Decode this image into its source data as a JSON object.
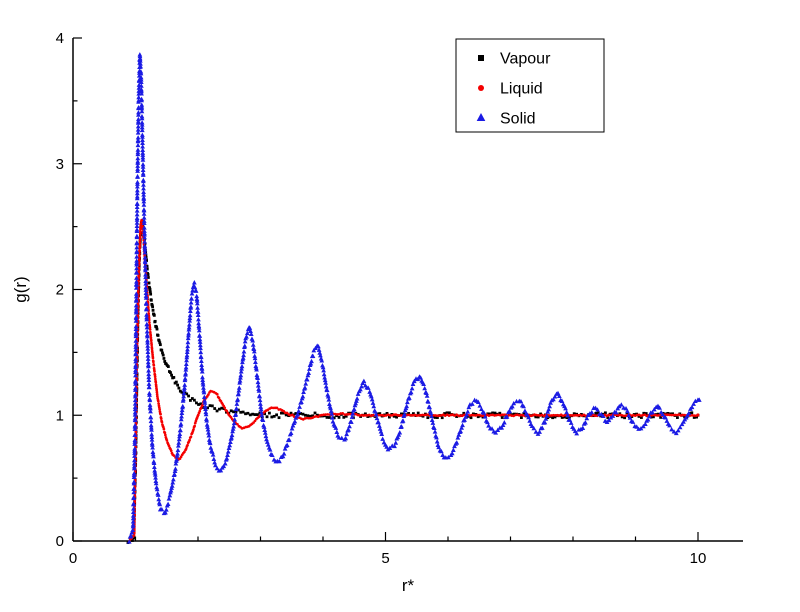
{
  "chart_data": {
    "type": "scatter",
    "title": "",
    "xlabel": "r*",
    "ylabel": "g(r)",
    "xlim": [
      0,
      10.72
    ],
    "ylim": [
      0,
      4
    ],
    "x_major_ticks": [
      0,
      5,
      10
    ],
    "x_minor_step": 1,
    "y_major_ticks": [
      0,
      1,
      2,
      3,
      4
    ],
    "y_minor_step": 0.5,
    "grid": false,
    "legend": {
      "position": "top-center-right",
      "border": true,
      "entries": [
        "Vapour",
        "Liquid",
        "Solid"
      ]
    },
    "series": [
      {
        "name": "Vapour",
        "color": "#000000",
        "marker": "square",
        "jitter": 0.02,
        "points": [
          [
            0.88,
            0
          ],
          [
            0.97,
            0.02
          ],
          [
            1.0,
            0.55
          ],
          [
            1.02,
            1.2
          ],
          [
            1.04,
            1.8
          ],
          [
            1.06,
            2.2
          ],
          [
            1.08,
            2.45
          ],
          [
            1.1,
            2.55
          ],
          [
            1.13,
            2.45
          ],
          [
            1.16,
            2.3
          ],
          [
            1.2,
            2.1
          ],
          [
            1.25,
            1.92
          ],
          [
            1.3,
            1.78
          ],
          [
            1.35,
            1.65
          ],
          [
            1.4,
            1.55
          ],
          [
            1.45,
            1.47
          ],
          [
            1.5,
            1.4
          ],
          [
            1.6,
            1.3
          ],
          [
            1.7,
            1.22
          ],
          [
            1.8,
            1.16
          ],
          [
            1.9,
            1.12
          ],
          [
            2.0,
            1.09
          ],
          [
            2.1,
            1.07
          ],
          [
            2.2,
            1.06
          ],
          [
            2.3,
            1.05
          ],
          [
            2.4,
            1.04
          ],
          [
            2.5,
            1.03
          ],
          [
            2.7,
            1.02
          ],
          [
            2.9,
            1.01
          ],
          [
            3.1,
            1.0
          ],
          [
            3.5,
            1.0
          ],
          [
            4.0,
            1.0
          ],
          [
            4.5,
            1.0
          ],
          [
            5.0,
            1.0
          ],
          [
            5.5,
            1.0
          ],
          [
            6.0,
            1.0
          ],
          [
            6.5,
            1.0
          ],
          [
            7.0,
            1.0
          ],
          [
            7.5,
            1.0
          ],
          [
            8.0,
            1.0
          ],
          [
            8.5,
            1.0
          ],
          [
            9.0,
            1.0
          ],
          [
            9.5,
            1.0
          ],
          [
            10.0,
            1.0
          ]
        ]
      },
      {
        "name": "Liquid",
        "color": "#f40000",
        "marker": "circle",
        "jitter": 0.005,
        "points": [
          [
            0.9,
            0
          ],
          [
            0.98,
            0.05
          ],
          [
            1.0,
            0.7
          ],
          [
            1.02,
            1.4
          ],
          [
            1.05,
            2.1
          ],
          [
            1.08,
            2.5
          ],
          [
            1.1,
            2.56
          ],
          [
            1.13,
            2.4
          ],
          [
            1.17,
            2.1
          ],
          [
            1.22,
            1.75
          ],
          [
            1.28,
            1.45
          ],
          [
            1.35,
            1.15
          ],
          [
            1.42,
            0.95
          ],
          [
            1.5,
            0.8
          ],
          [
            1.6,
            0.68
          ],
          [
            1.7,
            0.65
          ],
          [
            1.8,
            0.72
          ],
          [
            1.9,
            0.85
          ],
          [
            2.0,
            1.0
          ],
          [
            2.1,
            1.12
          ],
          [
            2.2,
            1.19
          ],
          [
            2.3,
            1.17
          ],
          [
            2.4,
            1.08
          ],
          [
            2.5,
            1.0
          ],
          [
            2.6,
            0.94
          ],
          [
            2.7,
            0.9
          ],
          [
            2.8,
            0.91
          ],
          [
            2.9,
            0.95
          ],
          [
            3.0,
            1.0
          ],
          [
            3.1,
            1.04
          ],
          [
            3.2,
            1.06
          ],
          [
            3.3,
            1.05
          ],
          [
            3.4,
            1.02
          ],
          [
            3.5,
            1.0
          ],
          [
            3.6,
            0.98
          ],
          [
            3.7,
            0.97
          ],
          [
            3.8,
            0.98
          ],
          [
            3.9,
            0.99
          ],
          [
            4.0,
            1.0
          ],
          [
            4.2,
            1.01
          ],
          [
            4.4,
            1.01
          ],
          [
            4.6,
            1.0
          ],
          [
            5.0,
            1.0
          ],
          [
            5.5,
            1.0
          ],
          [
            6.0,
            1.0
          ],
          [
            6.5,
            1.0
          ],
          [
            7.0,
            1.0
          ],
          [
            7.5,
            1.0
          ],
          [
            8.0,
            1.0
          ],
          [
            8.5,
            1.0
          ],
          [
            9.0,
            1.0
          ],
          [
            9.5,
            1.0
          ],
          [
            10.0,
            1.0
          ]
        ]
      },
      {
        "name": "Solid",
        "color": "#1b1be4",
        "marker": "triangle",
        "jitter": 0.012,
        "points": [
          [
            0.9,
            0
          ],
          [
            0.96,
            0.1
          ],
          [
            0.99,
            0.8
          ],
          [
            1.01,
            1.8
          ],
          [
            1.03,
            2.8
          ],
          [
            1.05,
            3.5
          ],
          [
            1.07,
            3.87
          ],
          [
            1.09,
            3.7
          ],
          [
            1.12,
            3.0
          ],
          [
            1.15,
            2.3
          ],
          [
            1.18,
            1.75
          ],
          [
            1.22,
            1.2
          ],
          [
            1.27,
            0.75
          ],
          [
            1.33,
            0.45
          ],
          [
            1.4,
            0.25
          ],
          [
            1.47,
            0.22
          ],
          [
            1.55,
            0.35
          ],
          [
            1.63,
            0.55
          ],
          [
            1.7,
            0.8
          ],
          [
            1.78,
            1.2
          ],
          [
            1.85,
            1.65
          ],
          [
            1.9,
            1.95
          ],
          [
            1.94,
            2.05
          ],
          [
            1.98,
            1.95
          ],
          [
            2.03,
            1.6
          ],
          [
            2.08,
            1.25
          ],
          [
            2.14,
            0.95
          ],
          [
            2.2,
            0.75
          ],
          [
            2.28,
            0.6
          ],
          [
            2.36,
            0.55
          ],
          [
            2.44,
            0.62
          ],
          [
            2.52,
            0.78
          ],
          [
            2.6,
            1.0
          ],
          [
            2.68,
            1.3
          ],
          [
            2.76,
            1.6
          ],
          [
            2.82,
            1.7
          ],
          [
            2.88,
            1.58
          ],
          [
            2.95,
            1.3
          ],
          [
            3.02,
            1.0
          ],
          [
            3.1,
            0.8
          ],
          [
            3.18,
            0.68
          ],
          [
            3.27,
            0.62
          ],
          [
            3.36,
            0.68
          ],
          [
            3.45,
            0.8
          ],
          [
            3.55,
            0.95
          ],
          [
            3.65,
            1.1
          ],
          [
            3.75,
            1.3
          ],
          [
            3.85,
            1.5
          ],
          [
            3.92,
            1.55
          ],
          [
            4.0,
            1.38
          ],
          [
            4.08,
            1.15
          ],
          [
            4.16,
            0.95
          ],
          [
            4.25,
            0.82
          ],
          [
            4.35,
            0.8
          ],
          [
            4.45,
            0.95
          ],
          [
            4.55,
            1.15
          ],
          [
            4.65,
            1.27
          ],
          [
            4.75,
            1.18
          ],
          [
            4.85,
            1.0
          ],
          [
            4.95,
            0.82
          ],
          [
            5.05,
            0.72
          ],
          [
            5.15,
            0.76
          ],
          [
            5.25,
            0.9
          ],
          [
            5.35,
            1.1
          ],
          [
            5.45,
            1.25
          ],
          [
            5.55,
            1.32
          ],
          [
            5.65,
            1.18
          ],
          [
            5.75,
            0.95
          ],
          [
            5.85,
            0.75
          ],
          [
            5.95,
            0.65
          ],
          [
            6.05,
            0.68
          ],
          [
            6.15,
            0.8
          ],
          [
            6.25,
            0.95
          ],
          [
            6.35,
            1.08
          ],
          [
            6.45,
            1.12
          ],
          [
            6.55,
            1.04
          ],
          [
            6.65,
            0.92
          ],
          [
            6.75,
            0.85
          ],
          [
            6.85,
            0.9
          ],
          [
            6.95,
            1.0
          ],
          [
            7.05,
            1.1
          ],
          [
            7.15,
            1.12
          ],
          [
            7.25,
            1.02
          ],
          [
            7.35,
            0.9
          ],
          [
            7.45,
            0.85
          ],
          [
            7.55,
            0.95
          ],
          [
            7.65,
            1.1
          ],
          [
            7.75,
            1.18
          ],
          [
            7.85,
            1.08
          ],
          [
            7.95,
            0.95
          ],
          [
            8.05,
            0.85
          ],
          [
            8.15,
            0.9
          ],
          [
            8.25,
            1.0
          ],
          [
            8.35,
            1.06
          ],
          [
            8.45,
            1.0
          ],
          [
            8.55,
            0.94
          ],
          [
            8.65,
            1.0
          ],
          [
            8.75,
            1.08
          ],
          [
            8.85,
            1.04
          ],
          [
            8.95,
            0.94
          ],
          [
            9.05,
            0.88
          ],
          [
            9.15,
            0.92
          ],
          [
            9.25,
            1.02
          ],
          [
            9.35,
            1.08
          ],
          [
            9.45,
            1.0
          ],
          [
            9.55,
            0.9
          ],
          [
            9.65,
            0.86
          ],
          [
            9.75,
            0.92
          ],
          [
            9.85,
            1.02
          ],
          [
            9.95,
            1.1
          ],
          [
            10.02,
            1.12
          ]
        ]
      }
    ]
  },
  "colors": {
    "background": "#ffffff",
    "axis": "#000000",
    "text": "#000000"
  }
}
